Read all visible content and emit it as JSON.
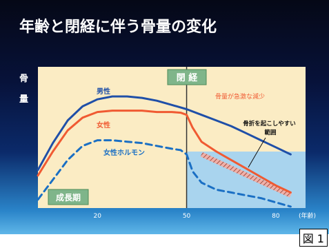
{
  "chart_data": {
    "type": "line",
    "title": "年齢と閉経に伴う骨量の変化",
    "ylabel": "骨量",
    "xlabel": "(年齢)",
    "x_ticks": [
      20,
      50,
      80
    ],
    "xlim": [
      0,
      90
    ],
    "ylim": [
      0,
      100
    ],
    "menopause_age": 50,
    "menopause_label": "閉 経",
    "growth_label": "成長期",
    "fracture_zone": {
      "label": "骨折を起こしやすい範囲",
      "y_max": 40
    },
    "decline_annotation": "骨量が急激な減少",
    "series": [
      {
        "name": "男性",
        "color": "#1f4fa8",
        "dashed": false,
        "x": [
          0,
          5,
          10,
          15,
          20,
          25,
          30,
          35,
          40,
          45,
          50,
          55,
          60,
          65,
          70,
          75,
          80,
          85
        ],
        "values": [
          27,
          46,
          62,
          72,
          77,
          79,
          79,
          78,
          76,
          73,
          70,
          66,
          62,
          58,
          53,
          48,
          43,
          38
        ]
      },
      {
        "name": "女性",
        "color": "#f05a32",
        "dashed": false,
        "x": [
          0,
          5,
          10,
          15,
          20,
          25,
          30,
          35,
          40,
          45,
          48,
          50,
          52,
          55,
          60,
          65,
          70,
          75,
          80,
          85
        ],
        "values": [
          23,
          40,
          55,
          64,
          68,
          69,
          69,
          69,
          68,
          68,
          67.5,
          66,
          57,
          47,
          40,
          34,
          28,
          22,
          16,
          11
        ]
      },
      {
        "name": "女性ホルモン",
        "color": "#1a6fc4",
        "dashed": true,
        "x": [
          0,
          5,
          10,
          15,
          20,
          25,
          30,
          35,
          40,
          45,
          48,
          50,
          52,
          55,
          60,
          65,
          70,
          75,
          80,
          85
        ],
        "values": [
          6,
          20,
          34,
          44,
          48,
          48,
          47,
          46,
          44,
          42,
          41,
          38,
          26,
          18,
          13,
          11,
          9,
          7,
          4,
          1
        ]
      }
    ],
    "hatched_band": {
      "x": [
        55,
        85
      ],
      "values": [
        38,
        9
      ]
    }
  },
  "labels": {
    "male": "男性",
    "female": "女性",
    "hormone": "女性ホルモン",
    "x_unit": "(年齢)",
    "y_axis_char1": "骨",
    "y_axis_char2": "量"
  },
  "figure_caption": "図 1"
}
